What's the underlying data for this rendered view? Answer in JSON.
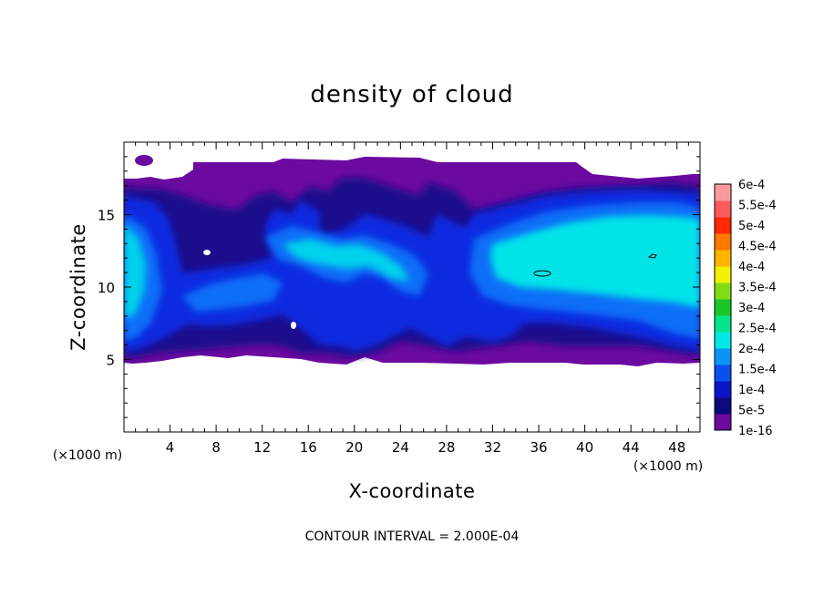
{
  "chart_data": {
    "type": "heatmap",
    "title": "density of cloud",
    "xlabel": "X-coordinate",
    "ylabel": "Z-coordinate",
    "x_unit": "(×1000 m)",
    "y_unit": "(×1000 m)",
    "xlim": [
      0,
      50
    ],
    "ylim": [
      0,
      20
    ],
    "x_ticks": [
      4,
      8,
      12,
      16,
      20,
      24,
      28,
      32,
      36,
      40,
      44,
      48
    ],
    "y_ticks": [
      5,
      10,
      15
    ],
    "colorbar": {
      "labels": [
        "1e-16",
        "5e-5",
        "1e-4",
        "1.5e-4",
        "2e-4",
        "2.5e-4",
        "3e-4",
        "3.5e-4",
        "4e-4",
        "4.5e-4",
        "5e-4",
        "5.5e-4",
        "6e-4"
      ],
      "colors": [
        "#6c0aa0",
        "#0a0a7a",
        "#0a14c8",
        "#0a50f0",
        "#0a96f8",
        "#05e6e6",
        "#05e68c",
        "#19c828",
        "#82dc14",
        "#f0f000",
        "#ffb400",
        "#ff7800",
        "#ff2800",
        "#ff5a5a",
        "#ff9a9a"
      ]
    },
    "contour_interval_text": "CONTOUR INTERVAL = 2.000E-04",
    "field": {
      "cloud_bottom_km": 5,
      "cloud_top_km": 18,
      "summary": "cloud layer between about 5 and 18 km; peak density ~2e-4 near x=0-2 km and x=34-50 km at z=10-14 km"
    }
  }
}
